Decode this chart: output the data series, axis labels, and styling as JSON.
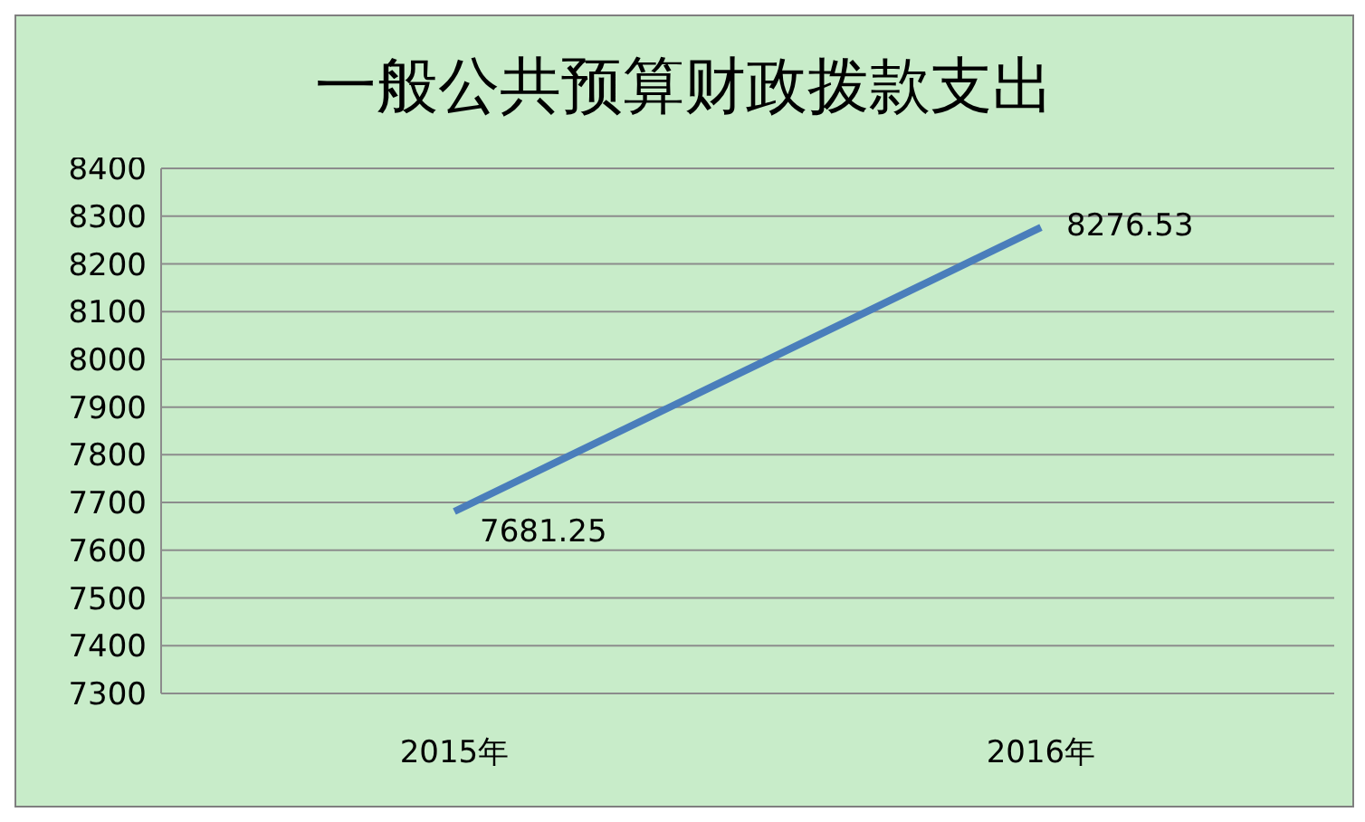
{
  "chart_data": {
    "type": "line",
    "title": "一般公共预算财政拨款支出",
    "categories": [
      "2015年",
      "2016年"
    ],
    "series": [
      {
        "color": "#4a7ebb",
        "values": [
          7681.25,
          8276.53
        ]
      }
    ],
    "ylim": [
      7300,
      8400
    ],
    "yticks": [
      7300,
      7400,
      7500,
      7600,
      7700,
      7800,
      7900,
      8000,
      8100,
      8200,
      8300,
      8400
    ],
    "grid": "y",
    "marker": "none",
    "line_style": "solid",
    "data_labels": true
  }
}
